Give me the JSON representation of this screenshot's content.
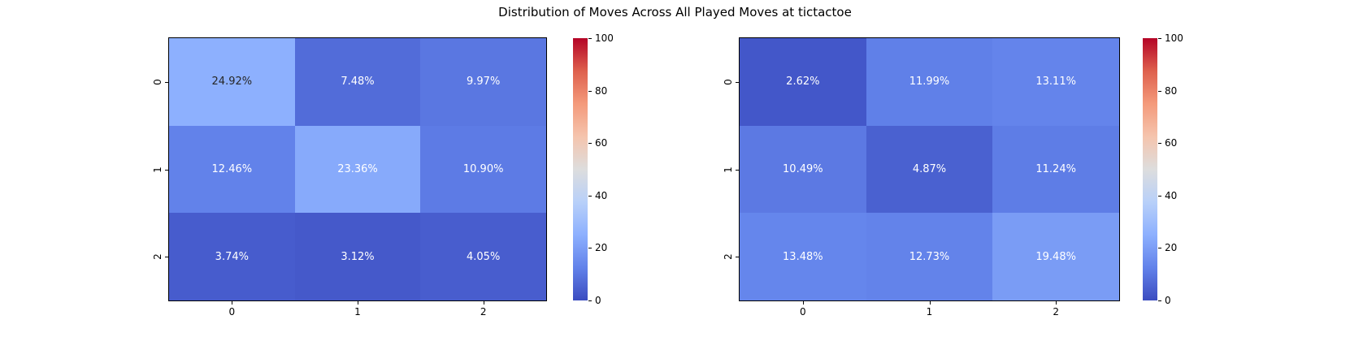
{
  "title": "Distribution of Moves Across All Played Moves at tictactoe",
  "chart_data": [
    {
      "type": "heatmap",
      "position": "left",
      "x_ticks": [
        "0",
        "1",
        "2"
      ],
      "y_ticks": [
        "0",
        "1",
        "2"
      ],
      "values": [
        [
          24.92,
          7.48,
          9.97
        ],
        [
          12.46,
          23.36,
          10.9
        ],
        [
          3.74,
          3.12,
          4.05
        ]
      ],
      "cell_labels": [
        [
          "24.92%",
          "7.48%",
          "9.97%"
        ],
        [
          "12.46%",
          "23.36%",
          "10.90%"
        ],
        [
          "3.74%",
          "3.12%",
          "4.05%"
        ]
      ],
      "colormap": "coolwarm",
      "vmin": 0,
      "vmax": 100,
      "colorbar_ticks": [
        0,
        20,
        40,
        60,
        80,
        100
      ],
      "grid": false,
      "annot_color_light": "#ffffff",
      "annot_color_dark": "#262626"
    },
    {
      "type": "heatmap",
      "position": "right",
      "x_ticks": [
        "0",
        "1",
        "2"
      ],
      "y_ticks": [
        "0",
        "1",
        "2"
      ],
      "values": [
        [
          2.62,
          11.99,
          13.11
        ],
        [
          10.49,
          4.87,
          11.24
        ],
        [
          13.48,
          12.73,
          19.48
        ]
      ],
      "cell_labels": [
        [
          "2.62%",
          "11.99%",
          "13.11%"
        ],
        [
          "10.49%",
          "4.87%",
          "11.24%"
        ],
        [
          "13.48%",
          "12.73%",
          "19.48%"
        ]
      ],
      "colormap": "coolwarm",
      "vmin": 0,
      "vmax": 100,
      "colorbar_ticks": [
        0,
        20,
        40,
        60,
        80,
        100
      ],
      "grid": false,
      "annot_color_light": "#ffffff",
      "annot_color_dark": "#262626"
    }
  ],
  "colors": {
    "colormap_low": "#3b4cc0",
    "colormap_mid": "#dddddd",
    "colormap_high": "#b40426",
    "background": "#ffffff",
    "axis": "#000000"
  }
}
